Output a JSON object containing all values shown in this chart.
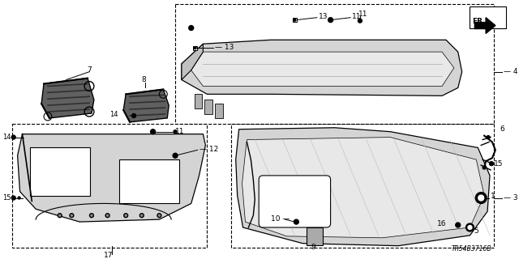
{
  "diagram_code": "TR54B3716B",
  "bg_color": "#ffffff",
  "line_color": "#000000",
  "text_color": "#000000",
  "gray_fill": "#d4d4d4",
  "dark_gray": "#888888",
  "light_gray": "#e8e8e8"
}
